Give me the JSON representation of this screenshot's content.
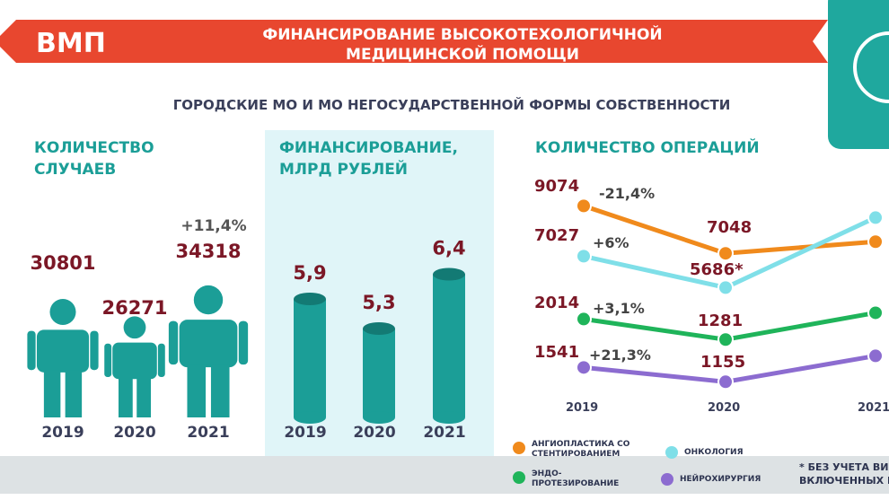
{
  "header": {
    "badge": "ВМП",
    "title_lines": [
      "ФИНАНСИРОВАНИЕ ВЫСОКОТЕХОЛОГИЧНОЙ",
      "МЕДИЦИНСКОЙ ПОМОЩИ"
    ],
    "subtitle": "ГОРОДСКИЕ МО И МО НЕГОСУДАРСТВЕННОЙ ФОРМЫ СОБСТВЕННОСТИ"
  },
  "chart_data": [
    {
      "type": "pictogram",
      "title_lines": [
        "КОЛИЧЕСТВО",
        "СЛУЧАЕВ"
      ],
      "categories": [
        "2019",
        "2020",
        "2021"
      ],
      "values": [
        30801,
        26271,
        34318
      ],
      "color": "#1b9e97",
      "ylim": [
        0,
        35000
      ],
      "annotation": "+11,4%"
    },
    {
      "type": "cylinder",
      "title_lines": [
        "ФИНАНСИРОВАНИЕ,",
        "МЛРД  РУБЛЕЙ"
      ],
      "categories": [
        "2019",
        "2020",
        "2021"
      ],
      "values": [
        5.9,
        5.3,
        6.4
      ],
      "value_labels": [
        "5,9",
        "5,3",
        "6,4"
      ],
      "color": "#1b9e97",
      "ylim": [
        3.5,
        6.5
      ]
    },
    {
      "type": "line",
      "title": "КОЛИЧЕСТВО ОПЕРАЦИЙ",
      "categories": [
        "2019",
        "2020",
        "2021"
      ],
      "series": [
        {
          "name": "АНГИОПЛАСТИКА СО СТЕНТИРОВАНИЕМ",
          "color": "#f08a1c",
          "values": [
            9074,
            7048,
            7545
          ],
          "ylim": [
            1000,
            10200
          ],
          "annotation": "-21,4%"
        },
        {
          "name": "ОНКОЛОГИЯ",
          "color": "#7fdfe8",
          "values": [
            7027,
            5686,
            8674
          ],
          "value_labels": [
            "7027",
            "5686*",
            null
          ],
          "ylim": [
            1100,
            10300
          ],
          "annotation": "+6%"
        },
        {
          "name": "ЭНДО-ПРОТЕЗИРОВАНИЕ",
          "color": "#1fb45a",
          "values": [
            2014,
            1281,
            2237
          ],
          "ylim": [
            -700,
            7000
          ],
          "annotation": "+3,1%"
        },
        {
          "name": "НЕЙРОХИРУРГИЯ",
          "color": "#8c6cd0",
          "values": [
            1541,
            1155,
            1853
          ],
          "ylim": [
            800,
            6600
          ],
          "annotation": "+21,3%"
        }
      ]
    }
  ],
  "footnote": [
    "* БЕЗ УЧЕТА ВИ",
    "ВКЛЮЧЕННЫХ В"
  ]
}
